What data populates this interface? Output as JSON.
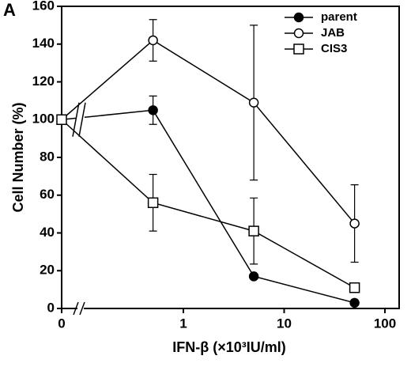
{
  "chart_data": {
    "type": "line",
    "panel_label": "A",
    "xlabel": "IFN-β (×10³IU/ml)",
    "ylabel": "Cell Number (%)",
    "x": [
      0,
      0.5,
      5,
      50
    ],
    "xscale": "log",
    "x_axis_break": true,
    "xlim": [
      0,
      100
    ],
    "xticks": [
      0,
      1,
      10,
      100
    ],
    "ylim": [
      0,
      160
    ],
    "yticks": [
      0,
      20,
      40,
      60,
      80,
      100,
      120,
      140,
      160
    ],
    "legend": "upper right",
    "series": [
      {
        "name": "parent",
        "color": "#000000",
        "marker": "circle",
        "fill": "#000000",
        "values": [
          100,
          105,
          17,
          3
        ],
        "errors": [
          null,
          7.5,
          null,
          null
        ]
      },
      {
        "name": "JAB",
        "color": "#000000",
        "marker": "circle",
        "fill": "#ffffff",
        "values": [
          100,
          142,
          109,
          45
        ],
        "errors": [
          null,
          11,
          41,
          20.5
        ]
      },
      {
        "name": "CIS3",
        "color": "#000000",
        "marker": "square",
        "fill": "#ffffff",
        "values": [
          100,
          56,
          41,
          11
        ],
        "errors": [
          null,
          15,
          17.5,
          null
        ]
      }
    ]
  }
}
